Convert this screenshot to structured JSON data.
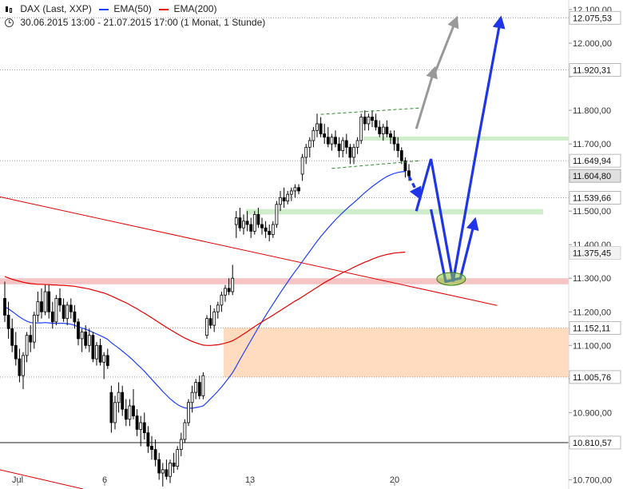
{
  "header": {
    "icon": "candlestick-icon",
    "symbol": "DAX (Last, XXP)",
    "ema50_label": "EMA(50)",
    "ema200_label": "EMA(200)",
    "period": "30.06.2015 13:00 - 21.07.2015 17:00 (1 Monat, 1 Stunde)"
  },
  "colors": {
    "ema50": "#1f3fff",
    "ema200": "#e60000",
    "candle": "#000000",
    "projection": "#1f35e8",
    "arrow_gray": "#999999",
    "support_band": "#cfeccb",
    "resistance_band": "#f6c4c4",
    "gap_zone": "#ffdcc0"
  },
  "chart_data": {
    "type": "candlestick",
    "title": "DAX (Last, XXP)",
    "interval": "1 Stunde",
    "range": "30.06.2015 13:00 - 21.07.2015 17:00",
    "x_ticks": [
      "Jul",
      "6",
      "13",
      "20"
    ],
    "y_ticks": [
      10700,
      10800,
      10900,
      11000,
      11100,
      11200,
      11300,
      11400,
      11500,
      11600,
      11700,
      11800,
      11900,
      12000,
      12100
    ],
    "y_tick_labels": [
      "10.700,00",
      "10.800,00",
      "10.900,00",
      "11.000,00",
      "11.100,00",
      "11.200,00",
      "11.300,00",
      "11.400,00",
      "11.500,00",
      "11.600,00",
      "11.700,00",
      "11.800,00",
      "11.900,00",
      "12.000,00",
      "12.100,00"
    ],
    "ylim": [
      10665,
      12115
    ],
    "marked_levels": [
      {
        "value": 12075.53,
        "label": "12.075,53",
        "style": "dotted"
      },
      {
        "value": 11920.31,
        "label": "11.920,31",
        "style": "dotted"
      },
      {
        "value": 11649.94,
        "label": "11.649,94",
        "style": "dotted"
      },
      {
        "value": 11604.8,
        "label": "11.604,80",
        "style": "current"
      },
      {
        "value": 11539.66,
        "label": "11.539,66",
        "style": "dotted"
      },
      {
        "value": 11375.45,
        "label": "11.375,45",
        "style": "ema"
      },
      {
        "value": 11152.11,
        "label": "11.152,11",
        "style": "dotted"
      },
      {
        "value": 11005.76,
        "label": "11.005,76",
        "style": "dotted"
      },
      {
        "value": 10810.57,
        "label": "10.810,57",
        "style": "solid"
      }
    ],
    "series": [
      {
        "name": "DAX (Last, XXP)",
        "kind": "candlestick",
        "ohlc": [
          [
            11240,
            11290,
            11170,
            11190
          ],
          [
            11190,
            11230,
            11120,
            11150
          ],
          [
            11150,
            11180,
            11080,
            11100
          ],
          [
            11100,
            11140,
            11040,
            11060
          ],
          [
            11060,
            11090,
            10990,
            11010
          ],
          [
            11010,
            11080,
            10970,
            11070
          ],
          [
            11070,
            11140,
            11050,
            11130
          ],
          [
            11130,
            11160,
            11080,
            11110
          ],
          [
            11110,
            11200,
            11090,
            11190
          ],
          [
            11190,
            11260,
            11170,
            11230
          ],
          [
            11230,
            11270,
            11180,
            11200
          ],
          [
            11200,
            11280,
            11190,
            11260
          ],
          [
            11260,
            11280,
            11180,
            11200
          ],
          [
            11200,
            11230,
            11150,
            11170
          ],
          [
            11170,
            11250,
            11160,
            11240
          ],
          [
            11240,
            11270,
            11200,
            11220
          ],
          [
            11220,
            11240,
            11170,
            11180
          ],
          [
            11180,
            11230,
            11160,
            11220
          ],
          [
            11220,
            11240,
            11180,
            11200
          ],
          [
            11200,
            11220,
            11150,
            11170
          ],
          [
            11170,
            11180,
            11100,
            11120
          ],
          [
            11120,
            11150,
            11080,
            11140
          ],
          [
            11140,
            11160,
            11090,
            11100
          ],
          [
            11100,
            11150,
            11080,
            11130
          ],
          [
            11130,
            11140,
            11050,
            11060
          ],
          [
            11060,
            11110,
            11040,
            11100
          ],
          [
            11100,
            11120,
            11040,
            11050
          ],
          [
            11050,
            11080,
            11000,
            11070
          ],
          [
            11070,
            11090,
            11030,
            11040
          ],
          [
            10960,
            10980,
            10840,
            10870
          ],
          [
            10870,
            10950,
            10850,
            10930
          ],
          [
            10930,
            10990,
            10900,
            10960
          ],
          [
            10960,
            10980,
            10890,
            10910
          ],
          [
            10910,
            10940,
            10860,
            10880
          ],
          [
            10880,
            10940,
            10860,
            10920
          ],
          [
            10920,
            10970,
            10880,
            10890
          ],
          [
            10890,
            10910,
            10830,
            10850
          ],
          [
            10850,
            10890,
            10800,
            10870
          ],
          [
            10870,
            10900,
            10820,
            10840
          ],
          [
            10840,
            10860,
            10780,
            10800
          ],
          [
            10800,
            10830,
            10760,
            10790
          ],
          [
            10790,
            10820,
            10740,
            10760
          ],
          [
            10760,
            10780,
            10700,
            10720
          ],
          [
            10720,
            10750,
            10680,
            10730
          ],
          [
            10730,
            10760,
            10700,
            10710
          ],
          [
            10710,
            10760,
            10690,
            10750
          ],
          [
            10750,
            10780,
            10720,
            10740
          ],
          [
            10740,
            10800,
            10730,
            10790
          ],
          [
            10790,
            10840,
            10770,
            10820
          ],
          [
            10820,
            10880,
            10810,
            10870
          ],
          [
            10870,
            10940,
            10860,
            10930
          ],
          [
            10930,
            10980,
            10900,
            10960
          ],
          [
            10960,
            11000,
            10940,
            10990
          ],
          [
            10990,
            11010,
            10940,
            10950
          ],
          [
            10950,
            11020,
            10940,
            11010
          ],
          [
            11130,
            11190,
            11120,
            11180
          ],
          [
            11180,
            11220,
            11150,
            11160
          ],
          [
            11160,
            11210,
            11140,
            11200
          ],
          [
            11200,
            11230,
            11180,
            11220
          ],
          [
            11220,
            11260,
            11200,
            11250
          ],
          [
            11250,
            11280,
            11230,
            11270
          ],
          [
            11270,
            11300,
            11250,
            11260
          ],
          [
            11260,
            11340,
            11250,
            11300
          ],
          [
            11460,
            11500,
            11420,
            11480
          ],
          [
            11480,
            11510,
            11440,
            11450
          ],
          [
            11450,
            11490,
            11430,
            11470
          ],
          [
            11470,
            11500,
            11440,
            11460
          ],
          [
            11460,
            11480,
            11420,
            11440
          ],
          [
            11440,
            11500,
            11430,
            11490
          ],
          [
            11490,
            11510,
            11450,
            11460
          ],
          [
            11460,
            11480,
            11430,
            11450
          ],
          [
            11450,
            11470,
            11420,
            11440
          ],
          [
            11440,
            11460,
            11410,
            11430
          ],
          [
            11430,
            11470,
            11420,
            11460
          ],
          [
            11460,
            11530,
            11450,
            11520
          ],
          [
            11520,
            11560,
            11500,
            11540
          ],
          [
            11540,
            11570,
            11510,
            11530
          ],
          [
            11530,
            11560,
            11520,
            11550
          ],
          [
            11550,
            11570,
            11530,
            11560
          ],
          [
            11560,
            11580,
            11540,
            11570
          ],
          [
            11570,
            11580,
            11550,
            11560
          ],
          [
            11610,
            11670,
            11590,
            11660
          ],
          [
            11660,
            11700,
            11640,
            11690
          ],
          [
            11690,
            11720,
            11660,
            11710
          ],
          [
            11710,
            11750,
            11690,
            11740
          ],
          [
            11740,
            11790,
            11720,
            11760
          ],
          [
            11760,
            11780,
            11720,
            11730
          ],
          [
            11730,
            11760,
            11700,
            11720
          ],
          [
            11720,
            11750,
            11690,
            11700
          ],
          [
            11700,
            11730,
            11680,
            11720
          ],
          [
            11720,
            11740,
            11690,
            11700
          ],
          [
            11700,
            11720,
            11660,
            11680
          ],
          [
            11680,
            11720,
            11660,
            11710
          ],
          [
            11710,
            11730,
            11670,
            11690
          ],
          [
            11690,
            11700,
            11640,
            11660
          ],
          [
            11660,
            11700,
            11640,
            11690
          ],
          [
            11690,
            11720,
            11670,
            11710
          ],
          [
            11710,
            11790,
            11700,
            11780
          ],
          [
            11780,
            11800,
            11740,
            11760
          ],
          [
            11760,
            11790,
            11740,
            11780
          ],
          [
            11780,
            11800,
            11750,
            11770
          ],
          [
            11770,
            11790,
            11740,
            11750
          ],
          [
            11750,
            11770,
            11720,
            11730
          ],
          [
            11730,
            11760,
            11710,
            11750
          ],
          [
            11750,
            11770,
            11720,
            11730
          ],
          [
            11730,
            11740,
            11700,
            11720
          ],
          [
            11720,
            11740,
            11680,
            11700
          ],
          [
            11700,
            11720,
            11660,
            11680
          ],
          [
            11680,
            11690,
            11640,
            11650
          ],
          [
            11650,
            11660,
            11600,
            11620
          ],
          [
            11620,
            11640,
            11590,
            11605
          ]
        ]
      },
      {
        "name": "EMA(50)",
        "kind": "line",
        "values": [
          11215,
          11209,
          11201,
          11193,
          11185,
          11178,
          11172,
          11168,
          11167,
          11167,
          11167,
          11168,
          11167,
          11166,
          11166,
          11166,
          11166,
          11165,
          11163,
          11160,
          11155,
          11152,
          11148,
          11144,
          11139,
          11134,
          11129,
          11124,
          11118,
          11108,
          11100,
          11092,
          11083,
          11074,
          11065,
          11055,
          11044,
          11034,
          11023,
          11011,
          10999,
          10987,
          10975,
          10963,
          10952,
          10941,
          10932,
          10924,
          10918,
          10914,
          10913,
          10913,
          10915,
          10917,
          10920,
          10930,
          10941,
          10952,
          10964,
          10976,
          10990,
          11004,
          11019,
          11038,
          11058,
          11077,
          11096,
          11115,
          11134,
          11153,
          11171,
          11189,
          11206,
          11223,
          11240,
          11257,
          11273,
          11289,
          11305,
          11320,
          11334,
          11350,
          11365,
          11380,
          11395,
          11410,
          11424,
          11437,
          11450,
          11462,
          11474,
          11485,
          11496,
          11506,
          11516,
          11525,
          11535,
          11545,
          11555,
          11564,
          11573,
          11581,
          11589,
          11596,
          11603,
          11608,
          11612,
          11615,
          11617,
          11618
        ]
      },
      {
        "name": "EMA(200)",
        "kind": "line",
        "values": [
          11305,
          11301,
          11297,
          11294,
          11291,
          11288,
          11286,
          11284,
          11283,
          11282,
          11282,
          11281,
          11281,
          11280,
          11280,
          11279,
          11279,
          11278,
          11277,
          11276,
          11274,
          11272,
          11270,
          11268,
          11265,
          11262,
          11259,
          11256,
          11252,
          11247,
          11242,
          11237,
          11232,
          11227,
          11221,
          11215,
          11209,
          11202,
          11196,
          11189,
          11182,
          11175,
          11168,
          11161,
          11154,
          11147,
          11141,
          11134,
          11128,
          11122,
          11117,
          11112,
          11108,
          11104,
          11101,
          11100,
          11100,
          11101,
          11102,
          11104,
          11107,
          11110,
          11114,
          11120,
          11127,
          11134,
          11141,
          11149,
          11156,
          11163,
          11170,
          11177,
          11183,
          11190,
          11197,
          11204,
          11211,
          11218,
          11225,
          11232,
          11238,
          11245,
          11252,
          11259,
          11266,
          11273,
          11280,
          11287,
          11293,
          11299,
          11305,
          11311,
          11317,
          11322,
          11327,
          11333,
          11338,
          11343,
          11348,
          11352,
          11357,
          11361,
          11365,
          11368,
          11371,
          11373,
          11375,
          11376,
          11377,
          11378
        ]
      },
      {
        "name": "Trendlinie",
        "kind": "line",
        "points": [
          {
            "bar": -2,
            "y": 11544
          },
          {
            "bar": 134,
            "y": 11219
          }
        ]
      }
    ],
    "zones": [
      {
        "kind": "support",
        "from": 11490,
        "to": 11506
      },
      {
        "kind": "support",
        "from": 11710,
        "to": 11722
      },
      {
        "kind": "resistance",
        "from": 11282,
        "to": 11300
      },
      {
        "kind": "gap",
        "from": 11005.76,
        "to": 11152.11
      }
    ],
    "projections": [
      {
        "kind": "scenario",
        "points": [
          {
            "bar": 110,
            "y": 11604
          },
          {
            "bar": 113,
            "y": 11540
          }
        ],
        "style": "dashed"
      },
      {
        "kind": "scenario",
        "points": [
          {
            "bar": 112,
            "y": 11500
          },
          {
            "bar": 116,
            "y": 11655
          },
          {
            "bar": 122,
            "y": 11290
          },
          {
            "bar": 129,
            "y": 11720
          },
          {
            "bar": 135,
            "y": 12075
          }
        ]
      },
      {
        "kind": "scenario",
        "points": [
          {
            "bar": 116,
            "y": 11505
          },
          {
            "bar": 120,
            "y": 11290
          },
          {
            "bar": 124,
            "y": 11300
          },
          {
            "bar": 128,
            "y": 11475
          }
        ]
      },
      {
        "kind": "alternative",
        "points": [
          {
            "bar": 112,
            "y": 11745
          },
          {
            "bar": 117,
            "y": 11925
          }
        ]
      },
      {
        "kind": "alternative",
        "points": [
          {
            "bar": 117,
            "y": 11910
          },
          {
            "bar": 123,
            "y": 12075
          }
        ]
      }
    ],
    "channel": {
      "upper": [
        {
          "bar": 86,
          "y": 11788
        },
        {
          "bar": 113,
          "y": 11807
        }
      ],
      "lower": [
        {
          "bar": 89,
          "y": 11627
        },
        {
          "bar": 113,
          "y": 11650
        }
      ]
    },
    "highlight": {
      "bar": 121.5,
      "y": 11298
    },
    "grid": false,
    "legend_position": "top-left"
  }
}
